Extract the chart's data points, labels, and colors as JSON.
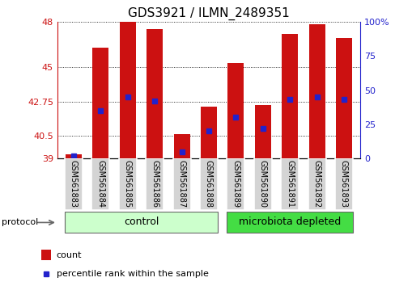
{
  "title": "GDS3921 / ILMN_2489351",
  "samples": [
    "GSM561883",
    "GSM561884",
    "GSM561885",
    "GSM561886",
    "GSM561887",
    "GSM561888",
    "GSM561889",
    "GSM561890",
    "GSM561891",
    "GSM561892",
    "GSM561893"
  ],
  "counts": [
    39.3,
    46.3,
    48.0,
    47.5,
    40.6,
    42.4,
    45.3,
    42.5,
    47.2,
    47.8,
    46.9
  ],
  "percentiles": [
    2,
    35,
    45,
    42,
    5,
    20,
    30,
    22,
    43,
    45,
    43
  ],
  "baseline": 39,
  "ylim_left": [
    39,
    48
  ],
  "ylim_right": [
    0,
    100
  ],
  "yticks_left": [
    39,
    40.5,
    42.75,
    45,
    48
  ],
  "yticks_right": [
    0,
    25,
    50,
    75,
    100
  ],
  "ytick_labels_left": [
    "39",
    "40.5",
    "42.75",
    "45",
    "48"
  ],
  "ytick_labels_right": [
    "0",
    "25",
    "50",
    "75",
    "100%"
  ],
  "groups": [
    {
      "label": "control",
      "start": 0,
      "end": 5,
      "color": "#ccffcc"
    },
    {
      "label": "microbiota depleted",
      "start": 6,
      "end": 10,
      "color": "#44dd44"
    }
  ],
  "bar_color": "#cc1111",
  "marker_color": "#2222cc",
  "bar_width": 0.6,
  "protocol_label": "protocol",
  "legend_items": [
    {
      "label": "count",
      "color": "#cc1111"
    },
    {
      "label": "percentile rank within the sample",
      "color": "#2222cc"
    }
  ],
  "title_fontsize": 11,
  "tick_fontsize": 8,
  "group_label_fontsize": 9,
  "sample_label_fontsize": 7,
  "legend_fontsize": 8
}
